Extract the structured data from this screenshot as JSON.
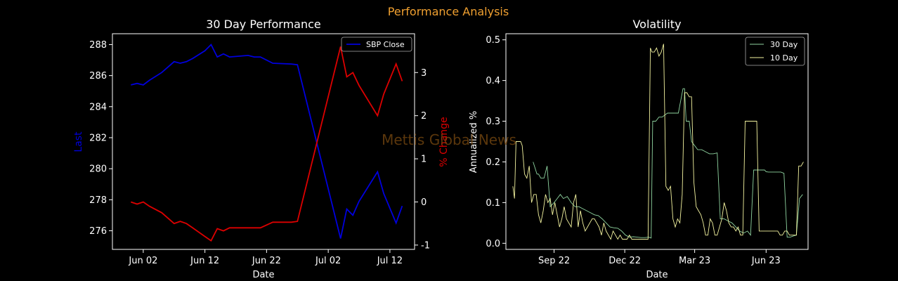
{
  "suptitle": "Performance Analysis",
  "watermark": "Mettis Global News",
  "colors": {
    "suptitle": "#f0a030",
    "close": "#0000dd",
    "pct": "#dd0000",
    "vol30": "#8fd4a0",
    "vol10": "#f4f4a0",
    "watermark": "#7a4a10"
  },
  "chart_data": [
    {
      "type": "line",
      "title": "30 Day Performance",
      "xlabel": "Date",
      "ylabel": "Last",
      "y2label": "% Change",
      "xlim": [
        "2023-05-28",
        "2023-07-16"
      ],
      "ylim": [
        274.8,
        288.7
      ],
      "y2lim": [
        -1.1,
        3.9
      ],
      "xticks": [
        {
          "date": "2023-06-02",
          "label": "Jun 02"
        },
        {
          "date": "2023-06-12",
          "label": "Jun 12"
        },
        {
          "date": "2023-06-22",
          "label": "Jun 22"
        },
        {
          "date": "2023-07-02",
          "label": "Jul 02"
        },
        {
          "date": "2023-07-12",
          "label": "Jul 12"
        }
      ],
      "yticks": [
        276,
        278,
        280,
        282,
        284,
        286,
        288
      ],
      "y2ticks": [
        -1,
        0,
        1,
        2,
        3
      ],
      "legend": {
        "entries": [
          "SBP Close"
        ],
        "placement": "upper right"
      },
      "series": [
        {
          "name": "SBP Close",
          "axis": "left",
          "x": [
            "2023-05-31",
            "2023-06-01",
            "2023-06-02",
            "2023-06-03",
            "2023-06-05",
            "2023-06-07",
            "2023-06-08",
            "2023-06-09",
            "2023-06-10",
            "2023-06-12",
            "2023-06-13",
            "2023-06-14",
            "2023-06-15",
            "2023-06-16",
            "2023-06-19",
            "2023-06-20",
            "2023-06-21",
            "2023-06-23",
            "2023-06-26",
            "2023-06-27",
            "2023-07-04",
            "2023-07-05",
            "2023-07-06",
            "2023-07-07",
            "2023-07-10",
            "2023-07-11",
            "2023-07-13",
            "2023-07-14"
          ],
          "values": [
            285.4,
            285.5,
            285.4,
            285.7,
            286.2,
            286.9,
            286.8,
            286.9,
            287.1,
            287.6,
            288.0,
            287.2,
            287.4,
            287.2,
            287.3,
            287.2,
            287.2,
            286.8,
            286.75,
            286.7,
            275.5,
            277.4,
            277.0,
            277.9,
            279.8,
            278.4,
            276.5,
            277.6
          ]
        },
        {
          "name": "% Change",
          "axis": "right",
          "x": [
            "2023-05-31",
            "2023-06-01",
            "2023-06-02",
            "2023-06-03",
            "2023-06-05",
            "2023-06-07",
            "2023-06-08",
            "2023-06-09",
            "2023-06-10",
            "2023-06-12",
            "2023-06-13",
            "2023-06-14",
            "2023-06-15",
            "2023-06-16",
            "2023-06-19",
            "2023-06-20",
            "2023-06-21",
            "2023-06-23",
            "2023-06-26",
            "2023-06-27",
            "2023-07-04",
            "2023-07-05",
            "2023-07-06",
            "2023-07-07",
            "2023-07-10",
            "2023-07-11",
            "2023-07-13",
            "2023-07-14"
          ],
          "values": [
            0.0,
            -0.05,
            0.0,
            -0.1,
            -0.25,
            -0.5,
            -0.45,
            -0.5,
            -0.6,
            -0.8,
            -0.9,
            -0.62,
            -0.67,
            -0.6,
            -0.6,
            -0.6,
            -0.6,
            -0.47,
            -0.47,
            -0.45,
            3.6,
            2.9,
            3.0,
            2.7,
            2.0,
            2.5,
            3.2,
            2.8
          ]
        }
      ]
    },
    {
      "type": "line",
      "title": "Volatility",
      "xlabel": "Date",
      "ylabel": "Annualized %",
      "xlim": [
        "2022-07-01",
        "2023-07-25"
      ],
      "ylim": [
        -0.015,
        0.515
      ],
      "xticks": [
        {
          "date": "2022-09-01",
          "label": "Sep 22"
        },
        {
          "date": "2022-12-01",
          "label": "Dec 22"
        },
        {
          "date": "2023-03-01",
          "label": "Mar 23"
        },
        {
          "date": "2023-06-01",
          "label": "Jun 23"
        }
      ],
      "yticks": [
        0.0,
        0.1,
        0.2,
        0.3,
        0.4,
        0.5
      ],
      "legend": {
        "entries": [
          "30 Day",
          "10 Day"
        ],
        "placement": "upper right"
      },
      "series": [
        {
          "name": "30 Day",
          "x": [
            "2022-07-22",
            "2022-07-26",
            "2022-07-28",
            "2022-08-02",
            "2022-08-05",
            "2022-08-10",
            "2022-08-12",
            "2022-08-15",
            "2022-08-19",
            "2022-08-23",
            "2022-08-27",
            "2022-09-01",
            "2022-09-05",
            "2022-09-09",
            "2022-09-13",
            "2022-09-18",
            "2022-09-23",
            "2022-09-28",
            "2022-10-03",
            "2022-10-08",
            "2022-10-13",
            "2022-10-18",
            "2022-10-23",
            "2022-10-28",
            "2022-11-02",
            "2022-11-07",
            "2022-11-12",
            "2022-11-17",
            "2022-11-22",
            "2022-11-27",
            "2022-12-02",
            "2022-12-07",
            "2022-12-12",
            "2022-12-17",
            "2022-12-22",
            "2022-12-27",
            "2023-01-01",
            "2023-01-04",
            "2023-01-06",
            "2023-01-10",
            "2023-01-14",
            "2023-01-18",
            "2023-01-25",
            "2023-02-01",
            "2023-02-08",
            "2023-02-14",
            "2023-02-16",
            "2023-02-18",
            "2023-02-22",
            "2023-02-25",
            "2023-03-01",
            "2023-03-05",
            "2023-03-10",
            "2023-03-15",
            "2023-03-20",
            "2023-03-25",
            "2023-03-30",
            "2023-04-03",
            "2023-04-08",
            "2023-04-13",
            "2023-04-18",
            "2023-04-23",
            "2023-04-28",
            "2023-05-03",
            "2023-05-08",
            "2023-05-12",
            "2023-05-16",
            "2023-05-20",
            "2023-05-25",
            "2023-05-30",
            "2023-06-01",
            "2023-06-04",
            "2023-06-08",
            "2023-06-12",
            "2023-06-16",
            "2023-06-20",
            "2023-06-24",
            "2023-06-28",
            "2023-07-02",
            "2023-07-06",
            "2023-07-10",
            "2023-07-14",
            "2023-07-18"
          ],
          "values": [
            null,
            null,
            null,
            null,
            0.2,
            0.17,
            0.17,
            0.16,
            0.16,
            0.19,
            0.09,
            0.1,
            0.11,
            0.12,
            0.11,
            0.115,
            0.1,
            0.09,
            0.09,
            0.085,
            0.08,
            0.075,
            0.07,
            0.068,
            0.06,
            0.05,
            0.04,
            0.038,
            0.037,
            0.03,
            0.02,
            0.015,
            0.016,
            0.015,
            0.014,
            0.014,
            0.015,
            0.013,
            0.3,
            0.3,
            0.31,
            0.31,
            0.32,
            0.32,
            0.32,
            0.38,
            0.38,
            0.3,
            0.3,
            0.25,
            0.24,
            0.23,
            0.23,
            0.225,
            0.22,
            0.22,
            0.222,
            0.06,
            0.06,
            0.055,
            0.05,
            0.04,
            0.03,
            0.025,
            0.03,
            0.02,
            0.18,
            0.18,
            0.18,
            0.18,
            0.176,
            0.175,
            0.175,
            0.175,
            0.175,
            0.175,
            0.172,
            0.015,
            0.015,
            0.018,
            0.02,
            0.11,
            0.12
          ]
        },
        {
          "name": "10 Day",
          "x": [
            "2022-07-10",
            "2022-07-12",
            "2022-07-14",
            "2022-07-18",
            "2022-07-20",
            "2022-07-22",
            "2022-07-25",
            "2022-07-28",
            "2022-07-31",
            "2022-08-03",
            "2022-08-06",
            "2022-08-09",
            "2022-08-12",
            "2022-08-15",
            "2022-08-18",
            "2022-08-21",
            "2022-08-24",
            "2022-08-27",
            "2022-08-30",
            "2022-09-02",
            "2022-09-05",
            "2022-09-08",
            "2022-09-11",
            "2022-09-14",
            "2022-09-17",
            "2022-09-20",
            "2022-09-23",
            "2022-09-26",
            "2022-09-29",
            "2022-10-02",
            "2022-10-05",
            "2022-10-08",
            "2022-10-11",
            "2022-10-14",
            "2022-10-17",
            "2022-10-20",
            "2022-10-23",
            "2022-10-26",
            "2022-10-29",
            "2022-11-01",
            "2022-11-04",
            "2022-11-07",
            "2022-11-10",
            "2022-11-13",
            "2022-11-16",
            "2022-11-19",
            "2022-11-22",
            "2022-11-25",
            "2022-11-28",
            "2022-12-01",
            "2022-12-04",
            "2022-12-07",
            "2022-12-10",
            "2022-12-13",
            "2022-12-16",
            "2022-12-19",
            "2022-12-22",
            "2022-12-25",
            "2022-12-28",
            "2022-12-31",
            "2023-01-03",
            "2023-01-05",
            "2023-01-08",
            "2023-01-11",
            "2023-01-14",
            "2023-01-17",
            "2023-01-20",
            "2023-01-23",
            "2023-01-26",
            "2023-01-29",
            "2023-02-01",
            "2023-02-04",
            "2023-02-07",
            "2023-02-10",
            "2023-02-13",
            "2023-02-16",
            "2023-02-19",
            "2023-02-22",
            "2023-02-25",
            "2023-02-28",
            "2023-03-03",
            "2023-03-06",
            "2023-03-09",
            "2023-03-12",
            "2023-03-15",
            "2023-03-18",
            "2023-03-21",
            "2023-03-24",
            "2023-03-27",
            "2023-03-30",
            "2023-04-02",
            "2023-04-05",
            "2023-04-08",
            "2023-04-11",
            "2023-04-14",
            "2023-04-17",
            "2023-04-20",
            "2023-04-23",
            "2023-04-26",
            "2023-04-29",
            "2023-05-02",
            "2023-05-05",
            "2023-05-08",
            "2023-05-11",
            "2023-05-14",
            "2023-05-17",
            "2023-05-20",
            "2023-05-23",
            "2023-05-26",
            "2023-05-29",
            "2023-06-01",
            "2023-06-04",
            "2023-06-07",
            "2023-06-10",
            "2023-06-13",
            "2023-06-16",
            "2023-06-19",
            "2023-06-22",
            "2023-06-25",
            "2023-06-28",
            "2023-07-01",
            "2023-07-04",
            "2023-07-07",
            "2023-07-10",
            "2023-07-13",
            "2023-07-16",
            "2023-07-19"
          ],
          "values": [
            0.14,
            0.11,
            0.25,
            0.25,
            0.25,
            0.24,
            0.17,
            0.16,
            0.19,
            0.1,
            0.12,
            0.12,
            0.07,
            0.05,
            0.08,
            0.12,
            0.1,
            0.11,
            0.07,
            0.1,
            0.07,
            0.04,
            0.06,
            0.09,
            0.06,
            0.05,
            0.04,
            0.1,
            0.12,
            0.04,
            0.08,
            0.05,
            0.03,
            0.04,
            0.05,
            0.06,
            0.06,
            0.05,
            0.04,
            0.02,
            0.05,
            0.03,
            0.02,
            0.01,
            0.03,
            0.02,
            0.01,
            0.02,
            0.01,
            0.01,
            0.01,
            0.02,
            0.01,
            0.01,
            0.01,
            0.01,
            0.01,
            0.01,
            0.01,
            0.01,
            0.48,
            0.47,
            0.47,
            0.48,
            0.46,
            0.47,
            0.49,
            0.14,
            0.13,
            0.14,
            0.06,
            0.04,
            0.06,
            0.05,
            0.12,
            0.37,
            0.37,
            0.36,
            0.36,
            0.15,
            0.09,
            0.08,
            0.07,
            0.05,
            0.02,
            0.02,
            0.06,
            0.05,
            0.02,
            0.02,
            0.04,
            0.06,
            0.1,
            0.08,
            0.05,
            0.04,
            0.04,
            0.03,
            0.04,
            0.02,
            0.02,
            0.3,
            0.3,
            0.3,
            0.3,
            0.3,
            0.3,
            0.03,
            0.03,
            0.03,
            0.03,
            0.03,
            0.03,
            0.03,
            0.03,
            0.03,
            0.02,
            0.02,
            0.03,
            0.03,
            0.02,
            0.02,
            0.02,
            0.02,
            0.19,
            0.19,
            0.2
          ]
        }
      ]
    }
  ]
}
